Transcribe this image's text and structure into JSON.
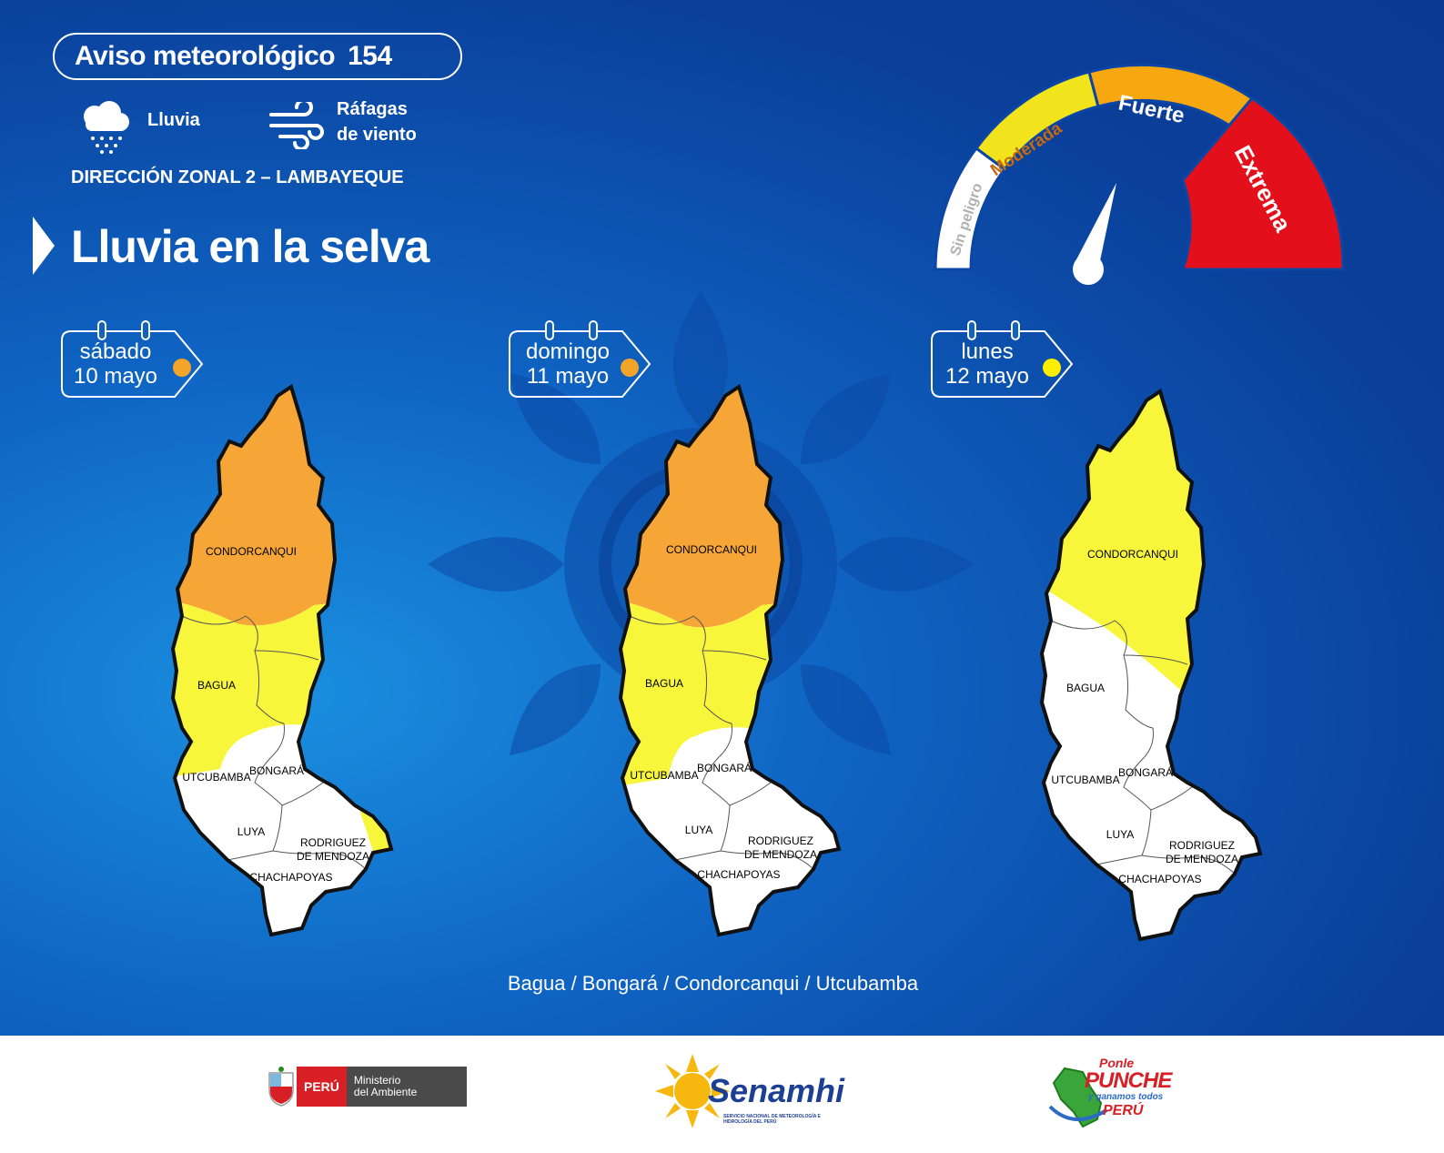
{
  "header": {
    "title": "Aviso meteorológico",
    "number": "154",
    "hazards": [
      {
        "icon": "rain-cloud-icon",
        "label": "Lluvia"
      },
      {
        "icon": "wind-gust-icon",
        "label_line1": "Ráfagas",
        "label_line2": "de viento"
      }
    ],
    "zone": "DIRECCIÓN ZONAL 2 – LAMBAYEQUE",
    "headline": "Lluvia en la selva"
  },
  "gauge": {
    "levels": [
      "Sin peligro",
      "Moderada",
      "Fuerte",
      "Extrema"
    ],
    "colors": {
      "sin_peligro": "#ffffff",
      "moderada": "#f2e41c",
      "fuerte": "#f7a70f",
      "extrema": "#e3101b"
    },
    "indicated_level": "Fuerte"
  },
  "days": [
    {
      "day": "sábado",
      "date": "10 mayo",
      "level_color": "#f5a42a"
    },
    {
      "day": "domingo",
      "date": "11 mayo",
      "level_color": "#f5a42a"
    },
    {
      "day": "lunes",
      "date": "12 mayo",
      "level_color": "#ffee00"
    }
  ],
  "map_labels": {
    "condorcanqui": "CONDORCANQUI",
    "bagua": "BAGUA",
    "utcubamba": "UTCUBAMBA",
    "bongara": "BONGARÁ",
    "luya": "LUYA",
    "rodriguez_1": "RODRIGUEZ",
    "rodriguez_2": "DE MENDOZA",
    "chachapoyas": "CHACHAPOYAS"
  },
  "map_colors": {
    "orange": "#f5a636",
    "yellow": "#f8f63b",
    "white": "#ffffff"
  },
  "provinces_line": "Bagua / Bongará / Condorcanqui / Utcubamba",
  "footer": {
    "peru": "PERÚ",
    "ministry_line1": "Ministerio",
    "ministry_line2": "del Ambiente",
    "senamhi": "Senamhi",
    "senamhi_sub": "SERVICIO NACIONAL DE METEOROLOGÍA E HIDROLOGÍA DEL PERÚ",
    "ponle": "Ponle",
    "punche": "PUNCHE",
    "ganamos": "y ganamos todos",
    "peru2": "PERÚ"
  }
}
